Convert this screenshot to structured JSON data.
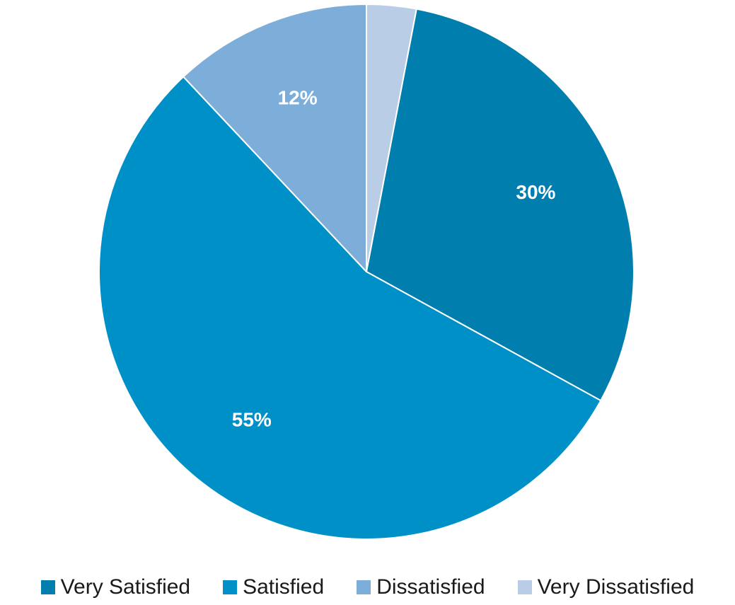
{
  "chart_data": {
    "type": "pie",
    "title": "",
    "start_angle_deg": 90,
    "direction": "clockwise",
    "legend_position": "bottom",
    "slices": [
      {
        "name": "Very Dissatisfied",
        "value": 3,
        "label": "",
        "color": "#b9cde6"
      },
      {
        "name": "Very Satisfied",
        "value": 30,
        "label": "30%",
        "color": "#007eae"
      },
      {
        "name": "Satisfied",
        "value": 55,
        "label": "55%",
        "color": "#0090c8"
      },
      {
        "name": "Dissatisfied",
        "value": 12,
        "label": "12%",
        "color": "#7daed9"
      }
    ],
    "legend": [
      {
        "name": "Very Satisfied",
        "color": "#007eae"
      },
      {
        "name": "Satisfied",
        "color": "#0090c8"
      },
      {
        "name": "Dissatisfied",
        "color": "#7daed9"
      },
      {
        "name": "Very Dissatisfied",
        "color": "#b9cde6"
      }
    ]
  }
}
